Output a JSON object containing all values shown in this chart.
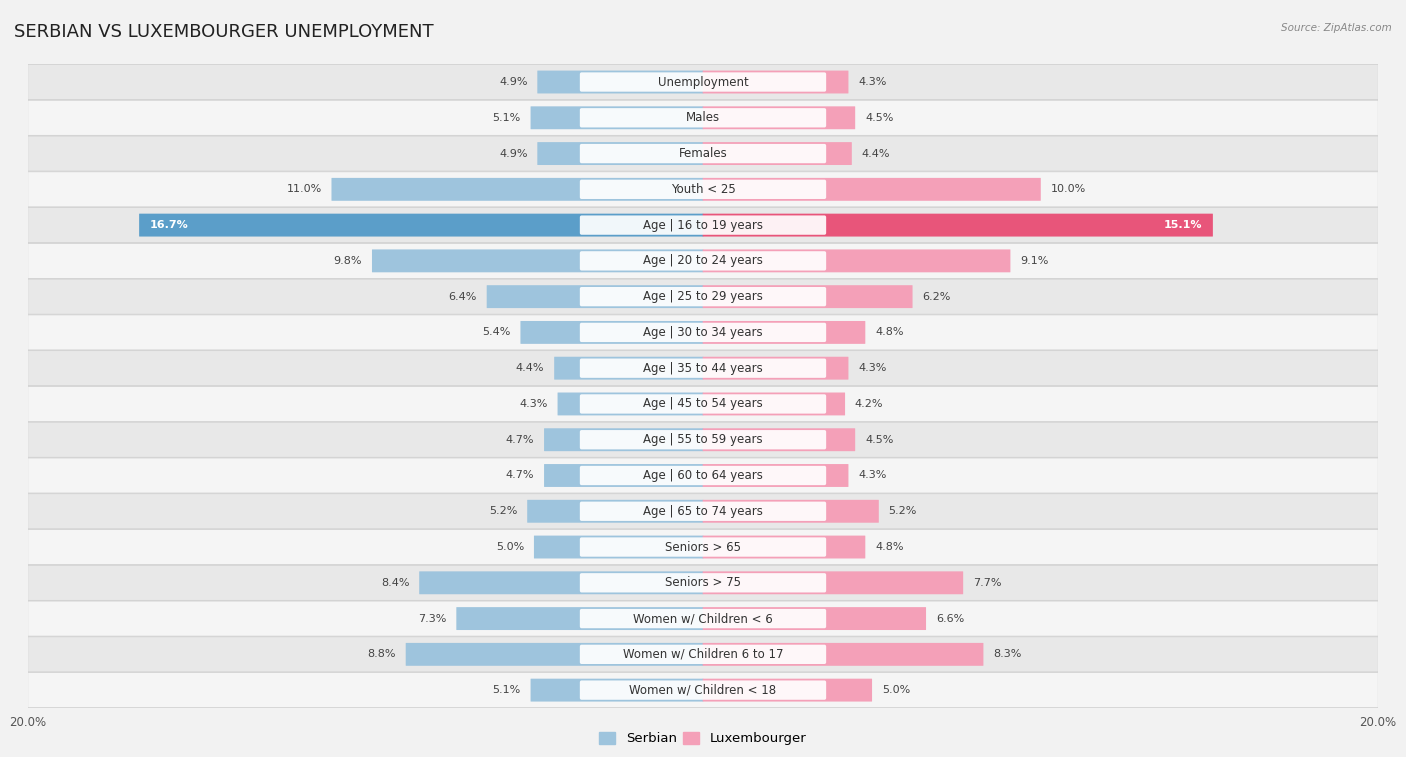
{
  "title": "SERBIAN VS LUXEMBOURGER UNEMPLOYMENT",
  "source": "Source: ZipAtlas.com",
  "categories": [
    "Unemployment",
    "Males",
    "Females",
    "Youth < 25",
    "Age | 16 to 19 years",
    "Age | 20 to 24 years",
    "Age | 25 to 29 years",
    "Age | 30 to 34 years",
    "Age | 35 to 44 years",
    "Age | 45 to 54 years",
    "Age | 55 to 59 years",
    "Age | 60 to 64 years",
    "Age | 65 to 74 years",
    "Seniors > 65",
    "Seniors > 75",
    "Women w/ Children < 6",
    "Women w/ Children 6 to 17",
    "Women w/ Children < 18"
  ],
  "serbian": [
    4.9,
    5.1,
    4.9,
    11.0,
    16.7,
    9.8,
    6.4,
    5.4,
    4.4,
    4.3,
    4.7,
    4.7,
    5.2,
    5.0,
    8.4,
    7.3,
    8.8,
    5.1
  ],
  "luxembourger": [
    4.3,
    4.5,
    4.4,
    10.0,
    15.1,
    9.1,
    6.2,
    4.8,
    4.3,
    4.2,
    4.5,
    4.3,
    5.2,
    4.8,
    7.7,
    6.6,
    8.3,
    5.0
  ],
  "serbian_color": "#9ec4dd",
  "luxembourger_color": "#f4a0b8",
  "serbian_highlight": "#5b9ec9",
  "luxembourger_highlight": "#e8557a",
  "axis_max": 20.0,
  "background_color": "#f2f2f2",
  "row_color_odd": "#e8e8e8",
  "row_color_even": "#f5f5f5",
  "row_border_color": "#cccccc",
  "bar_height": 0.62,
  "title_fontsize": 13,
  "label_fontsize": 8.5,
  "value_fontsize": 8.0
}
